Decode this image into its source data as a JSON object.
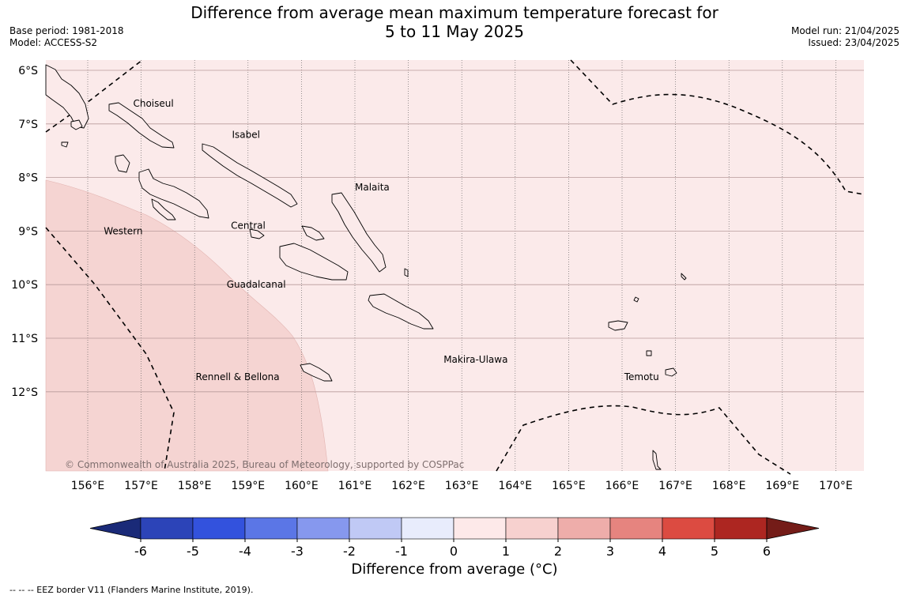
{
  "title": {
    "line1": "Difference from average mean maximum temperature forecast for",
    "line2": "5 to 11 May 2025"
  },
  "meta_left": {
    "base_period": "Base period: 1981-2018",
    "model": "Model: ACCESS-S2"
  },
  "meta_right": {
    "model_run": "Model run: 21/04/2025",
    "issued": "Issued: 23/04/2025"
  },
  "map": {
    "lat_labels": [
      "6°S",
      "7°S",
      "8°S",
      "9°S",
      "10°S",
      "11°S",
      "12°S"
    ],
    "lon_labels": [
      "156°E",
      "157°E",
      "158°E",
      "159°E",
      "160°E",
      "161°E",
      "162°E",
      "163°E",
      "164°E",
      "165°E",
      "166°E",
      "167°E",
      "168°E",
      "169°E",
      "170°E"
    ],
    "regions": [
      {
        "name": "Choiseul"
      },
      {
        "name": "Isabel"
      },
      {
        "name": "Malaita"
      },
      {
        "name": "Central"
      },
      {
        "name": "Western"
      },
      {
        "name": "Guadalcanal"
      },
      {
        "name": "Makira-Ulawa"
      },
      {
        "name": "Rennell & Bellona"
      },
      {
        "name": "Temotu"
      }
    ],
    "copyright": "© Commonwealth of Australia 2025, Bureau of Meteorology, supported by COSPPac",
    "fill_colors": {
      "range_0_1": "#fbeaea",
      "range_1_2": "#f5d4d2"
    }
  },
  "colorbar": {
    "ticks": [
      "-6",
      "-5",
      "-4",
      "-3",
      "-2",
      "-1",
      "0",
      "1",
      "2",
      "3",
      "4",
      "5",
      "6"
    ],
    "colors": [
      "#1a2a78",
      "#2c44b8",
      "#3352dd",
      "#5b76e6",
      "#8698ee",
      "#c0c9f5",
      "#e8ecfc",
      "#fde9e9",
      "#f7d1cf",
      "#eeadaa",
      "#e6847f",
      "#dc4b41",
      "#ad2621",
      "#741c18"
    ],
    "label": "Difference from average (°C)"
  },
  "footnote": "--  --  -- EEZ border V11 (Flanders Marine Institute, 2019)."
}
